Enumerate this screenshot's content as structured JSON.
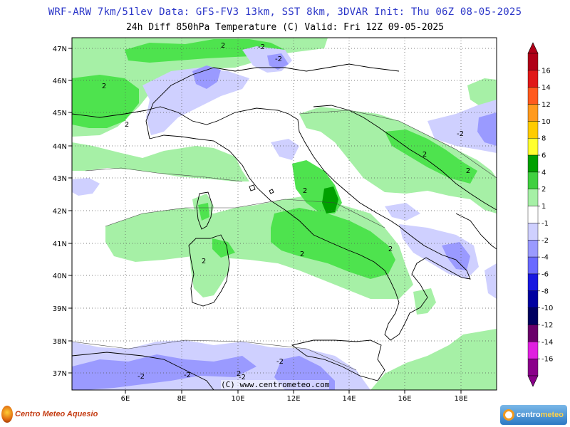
{
  "header": {
    "line1": "WRF-ARW 7km/51lev  Data: GFS-FV3 13km, SST 8km, 3DVAR  Init: Thu 06Z 08-05-2025",
    "line2": "24h Diff 850hPa Temperature (C)  Valid: Fri 12Z 09-05-2025"
  },
  "map": {
    "lat_labels": [
      "47N",
      "46N",
      "45N",
      "44N",
      "43N",
      "42N",
      "41N",
      "40N",
      "39N",
      "38N",
      "37N"
    ],
    "lon_labels": [
      "6E",
      "8E",
      "10E",
      "12E",
      "14E",
      "16E",
      "18E"
    ],
    "copyright": "(C) www.centrometeo.com",
    "contour_labels": [
      "2",
      "-2",
      "2",
      "-2",
      "2",
      "2",
      "-2",
      "2",
      "2",
      "2",
      "2",
      "2",
      "2",
      "-2",
      "-2",
      "-2",
      "-2"
    ],
    "colors": {
      "light_green": "#a6f0a6",
      "green": "#4ee34e",
      "dark_green": "#00a000",
      "light_blue": "#cfd0ff",
      "blue": "#9a9aff"
    }
  },
  "colorbar": {
    "labels": [
      "16",
      "14",
      "12",
      "10",
      "8",
      "6",
      "4",
      "2",
      "1",
      "-1",
      "-2",
      "-4",
      "-6",
      "-8",
      "-10",
      "-12",
      "-14",
      "-16"
    ],
    "colors": [
      "#b00018",
      "#e01818",
      "#ff5a1e",
      "#ff9a1e",
      "#ffcc00",
      "#ffff30",
      "#00a000",
      "#40d040",
      "#a6f0a6",
      "#ffffff",
      "#cfd0ff",
      "#9a9aff",
      "#6a6aff",
      "#1818e0",
      "#0000a0",
      "#000060",
      "#6a006a",
      "#e020e0",
      "#8a008a"
    ]
  },
  "logos": {
    "left": "Centro Meteo Aquesio",
    "right_a": "centro",
    "right_b": "meteo"
  }
}
